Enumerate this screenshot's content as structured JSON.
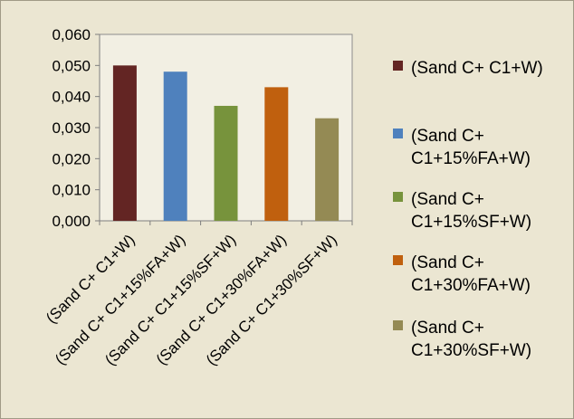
{
  "chart_data": {
    "type": "bar",
    "categories": [
      "(Sand C+ C1+W)",
      "(Sand C+ C1+15%FA+W)",
      "(Sand C+ C1+15%SF+W)",
      "(Sand C+ C1+30%FA+W)",
      "(Sand C+ C1+30%SF+W)"
    ],
    "values": [
      0.05,
      0.048,
      0.037,
      0.043,
      0.033
    ],
    "colors": [
      "#632523",
      "#4f81bd",
      "#77933c",
      "#c0600e",
      "#948a54"
    ],
    "ylim": [
      0,
      0.06
    ],
    "yticks": [
      "0,000",
      "0,010",
      "0,020",
      "0,030",
      "0,040",
      "0,050",
      "0,060"
    ],
    "grid": false,
    "legend": {
      "position": "right",
      "entries": [
        [
          "(Sand C+ C1+W)"
        ],
        [
          "(Sand C+",
          "C1+15%FA+W)"
        ],
        [
          "(Sand C+",
          "C1+15%SF+W)"
        ],
        [
          "(Sand C+",
          "C1+30%FA+W)"
        ],
        [
          "(Sand C+",
          "C1+30%SF+W)"
        ]
      ]
    }
  }
}
